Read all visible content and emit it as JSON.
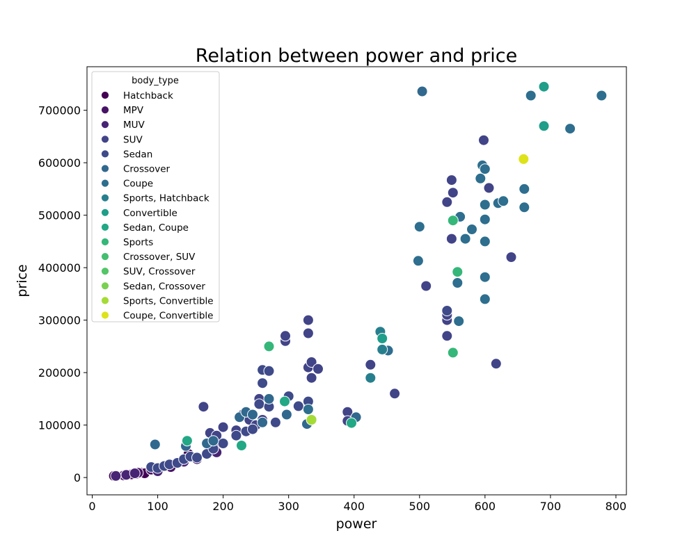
{
  "chart_data": {
    "type": "scatter",
    "title": "Relation between power and price",
    "xlabel": "power",
    "ylabel": "price",
    "xlim": [
      -8,
      816
    ],
    "ylim": [
      -33000,
      783000
    ],
    "xticks": [
      0,
      100,
      200,
      300,
      400,
      500,
      600,
      700,
      800
    ],
    "yticks": [
      0,
      100000,
      200000,
      300000,
      400000,
      500000,
      600000,
      700000
    ],
    "legend": {
      "title": "body_type",
      "placement": "upper-left"
    },
    "series": [
      {
        "name": "Hatchback",
        "color": "#440154",
        "points": [
          [
            33,
            3000
          ],
          [
            47,
            4000
          ],
          [
            55,
            5000
          ],
          [
            60,
            6000
          ],
          [
            68,
            7000
          ],
          [
            75,
            9000
          ],
          [
            80,
            8000
          ],
          [
            147,
            45000
          ],
          [
            188,
            60000
          ],
          [
            185,
            50000
          ]
        ]
      },
      {
        "name": "MPV",
        "color": "#471365",
        "points": [
          [
            48,
            4000
          ],
          [
            70,
            9000
          ],
          [
            90,
            15000
          ],
          [
            120,
            20000
          ]
        ]
      },
      {
        "name": "MUV",
        "color": "#482475",
        "points": [
          [
            36,
            3000
          ],
          [
            52,
            5000
          ],
          [
            65,
            8000
          ],
          [
            100,
            12000
          ],
          [
            140,
            30000
          ],
          [
            160,
            35000
          ],
          [
            190,
            48000
          ]
        ]
      },
      {
        "name": "SUV",
        "color": "#414487",
        "points": [
          [
            170,
            135000
          ],
          [
            180,
            85000
          ],
          [
            190,
            80000
          ],
          [
            230,
            120000
          ],
          [
            240,
            110000
          ],
          [
            250,
            100000
          ],
          [
            255,
            150000
          ],
          [
            260,
            110000
          ],
          [
            295,
            260000
          ],
          [
            295,
            270000
          ],
          [
            330,
            300000
          ],
          [
            330,
            275000
          ],
          [
            330,
            210000
          ],
          [
            335,
            220000
          ],
          [
            335,
            190000
          ],
          [
            345,
            207000
          ],
          [
            390,
            125000
          ],
          [
            390,
            108000
          ],
          [
            425,
            215000
          ],
          [
            462,
            160000
          ],
          [
            510,
            365000
          ],
          [
            542,
            525000
          ],
          [
            542,
            300000
          ],
          [
            542,
            310000
          ],
          [
            542,
            270000
          ],
          [
            549,
            567000
          ],
          [
            549,
            455000
          ],
          [
            551,
            543000
          ],
          [
            598,
            643000
          ],
          [
            606,
            552000
          ],
          [
            640,
            420000
          ],
          [
            617,
            217000
          ],
          [
            200,
            96000
          ],
          [
            220,
            90000
          ]
        ]
      },
      {
        "name": "Sedan",
        "color": "#3e4a89",
        "points": [
          [
            90,
            20000
          ],
          [
            100,
            18000
          ],
          [
            110,
            22000
          ],
          [
            118,
            25000
          ],
          [
            130,
            28000
          ],
          [
            140,
            35000
          ],
          [
            150,
            40000
          ],
          [
            160,
            38000
          ],
          [
            175,
            45000
          ],
          [
            185,
            55000
          ],
          [
            200,
            65000
          ],
          [
            220,
            80000
          ],
          [
            235,
            88000
          ],
          [
            245,
            92000
          ],
          [
            255,
            140000
          ],
          [
            260,
            180000
          ],
          [
            260,
            205000
          ],
          [
            270,
            203000
          ],
          [
            270,
            135000
          ],
          [
            280,
            105000
          ],
          [
            300,
            155000
          ],
          [
            330,
            145000
          ],
          [
            315,
            136000
          ],
          [
            542,
            318000
          ]
        ]
      },
      {
        "name": "Crossover",
        "color": "#31688e",
        "points": [
          [
            96,
            63000
          ],
          [
            143,
            60000
          ],
          [
            175,
            65000
          ],
          [
            185,
            70000
          ],
          [
            225,
            115000
          ],
          [
            235,
            125000
          ],
          [
            245,
            120000
          ],
          [
            260,
            105000
          ],
          [
            270,
            150000
          ],
          [
            297,
            120000
          ],
          [
            328,
            102000
          ],
          [
            403,
            115000
          ],
          [
            504,
            736000
          ]
        ]
      },
      {
        "name": "Coupe",
        "color": "#2e6e8e",
        "points": [
          [
            500,
            478000
          ],
          [
            498,
            413000
          ],
          [
            558,
            371000
          ],
          [
            560,
            298000
          ],
          [
            562,
            497000
          ],
          [
            570,
            455000
          ],
          [
            580,
            473000
          ],
          [
            593,
            570000
          ],
          [
            596,
            595000
          ],
          [
            600,
            588000
          ],
          [
            600,
            520000
          ],
          [
            600,
            492000
          ],
          [
            600,
            450000
          ],
          [
            600,
            382000
          ],
          [
            600,
            340000
          ],
          [
            620,
            523000
          ],
          [
            628,
            527000
          ],
          [
            660,
            550000
          ],
          [
            660,
            515000
          ],
          [
            670,
            728000
          ],
          [
            730,
            665000
          ],
          [
            778,
            728000
          ],
          [
            452,
            242000
          ],
          [
            330,
            130000
          ]
        ]
      },
      {
        "name": "Sports, Hatchback",
        "color": "#277f8e",
        "points": [
          [
            443,
            244000
          ],
          [
            440,
            278000
          ],
          [
            425,
            190000
          ]
        ]
      },
      {
        "name": "Convertible",
        "color": "#1f9e89",
        "points": [
          [
            690,
            745000
          ],
          [
            690,
            670000
          ],
          [
            443,
            265000
          ]
        ]
      },
      {
        "name": "Sedan, Coupe",
        "color": "#22a884",
        "points": [
          [
            294,
            145000
          ],
          [
            396,
            104000
          ],
          [
            228,
            61000
          ],
          [
            145,
            70000
          ]
        ]
      },
      {
        "name": "Sports",
        "color": "#35b779",
        "points": [
          [
            270,
            250000
          ],
          [
            551,
            490000
          ],
          [
            558,
            392000
          ],
          [
            551,
            238000
          ]
        ]
      },
      {
        "name": "Crossover, SUV",
        "color": "#44bf70",
        "points": []
      },
      {
        "name": "SUV, Crossover",
        "color": "#54c568",
        "points": []
      },
      {
        "name": "Sedan, Crossover",
        "color": "#7ad151",
        "points": []
      },
      {
        "name": "Sports, Convertible",
        "color": "#a5db36",
        "points": [
          [
            335,
            110000
          ]
        ]
      },
      {
        "name": "Coupe, Convertible",
        "color": "#dde318",
        "points": [
          [
            659,
            607000
          ]
        ]
      }
    ]
  }
}
